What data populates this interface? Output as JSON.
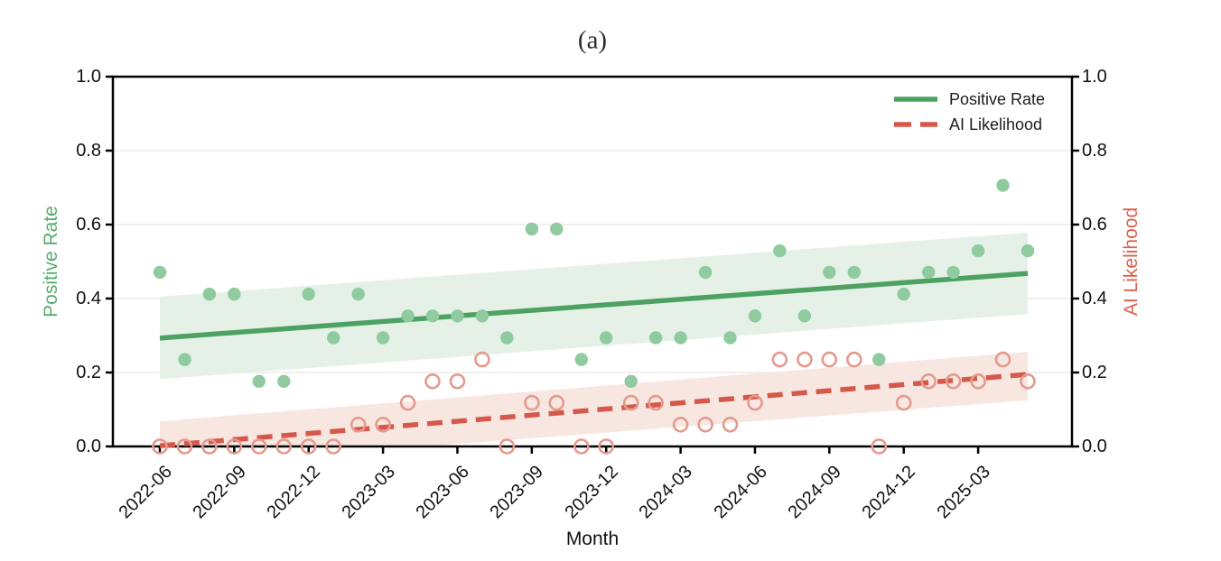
{
  "figure": {
    "title": "(a)",
    "xlabel": "Month",
    "ylabel_left": "Positive Rate",
    "ylabel_right": "AI Likelihood",
    "legend": {
      "items": [
        {
          "label": "Positive Rate",
          "swatch": "solid-line"
        },
        {
          "label": "AI Likelihood",
          "swatch": "dashed-line"
        }
      ]
    }
  },
  "chart_data": {
    "type": "scatter",
    "title": "(a)",
    "xlabel": "Month",
    "ylabel_left": "Positive Rate",
    "ylabel_right": "AI Likelihood",
    "ylim": [
      0,
      1
    ],
    "grid": "horizontal",
    "legend_position": "upper right",
    "x_tick_rotation": -45,
    "y_ticks": [
      "0.0",
      "0.2",
      "0.4",
      "0.6",
      "0.8",
      "1.0"
    ],
    "y_tick_values": [
      0.0,
      0.2,
      0.4,
      0.6,
      0.8,
      1.0
    ],
    "x_tick_labels": [
      "2022-06",
      "2022-09",
      "2022-12",
      "2023-03",
      "2023-06",
      "2023-09",
      "2023-12",
      "2024-03",
      "2024-06",
      "2024-09",
      "2024-12",
      "2025-03"
    ],
    "x_tick_month_index": [
      0,
      3,
      6,
      9,
      12,
      15,
      18,
      21,
      24,
      27,
      30,
      33
    ],
    "months": [
      "2022-06",
      "2022-07",
      "2022-08",
      "2022-09",
      "2022-10",
      "2022-11",
      "2022-12",
      "2023-01",
      "2023-02",
      "2023-03",
      "2023-04",
      "2023-05",
      "2023-06",
      "2023-07",
      "2023-08",
      "2023-09",
      "2023-10",
      "2023-11",
      "2023-12",
      "2024-01",
      "2024-02",
      "2024-03",
      "2024-04",
      "2024-05",
      "2024-06",
      "2024-07",
      "2024-08",
      "2024-09",
      "2024-10",
      "2024-11",
      "2024-12",
      "2025-01",
      "2025-02",
      "2025-03",
      "2025-04",
      "2025-05"
    ],
    "series": [
      {
        "name": "Positive Rate",
        "axis": "left",
        "line_style": "solid",
        "marker": "filled-circle",
        "line_color": "#4da263",
        "label_color": "#56ac6e",
        "marker_color": "#8fcb9e",
        "band_color": "#e5f1e7",
        "values": [
          0.471,
          0.235,
          0.412,
          0.412,
          0.176,
          0.176,
          0.412,
          0.294,
          0.412,
          0.294,
          0.353,
          0.353,
          0.353,
          0.353,
          0.294,
          0.588,
          0.588,
          0.235,
          0.294,
          0.176,
          0.294,
          0.294,
          0.471,
          0.294,
          0.353,
          0.529,
          0.353,
          0.471,
          0.471,
          0.235,
          0.412,
          0.471,
          0.471,
          0.529,
          0.706,
          0.529
        ],
        "trend": {
          "y_start": 0.293,
          "y_end": 0.468
        },
        "ci_band": {
          "top_start": 0.405,
          "top_end": 0.578,
          "bottom_start": 0.182,
          "bottom_end": 0.358
        }
      },
      {
        "name": "AI Likelihood",
        "axis": "right",
        "line_style": "dashed",
        "marker": "open-circle",
        "line_color": "#d5584a",
        "label_color": "#d95f4d",
        "marker_color": "#e49a8d",
        "band_color": "#f8e6e1",
        "values": [
          0.0,
          0.0,
          0.0,
          0.0,
          0.0,
          0.0,
          0.0,
          0.0,
          0.059,
          0.059,
          0.118,
          0.176,
          0.176,
          0.235,
          0.0,
          0.118,
          0.118,
          0.0,
          0.0,
          0.118,
          0.118,
          0.059,
          0.059,
          0.059,
          0.118,
          0.235,
          0.235,
          0.235,
          0.235,
          0.0,
          0.118,
          0.176,
          0.176,
          0.176,
          0.235,
          0.176
        ],
        "trend": {
          "y_start": 0.002,
          "y_end": 0.195
        },
        "ci_band": {
          "top_start": 0.068,
          "top_end": 0.256,
          "bottom_start": -0.055,
          "bottom_end": 0.125
        }
      }
    ]
  }
}
